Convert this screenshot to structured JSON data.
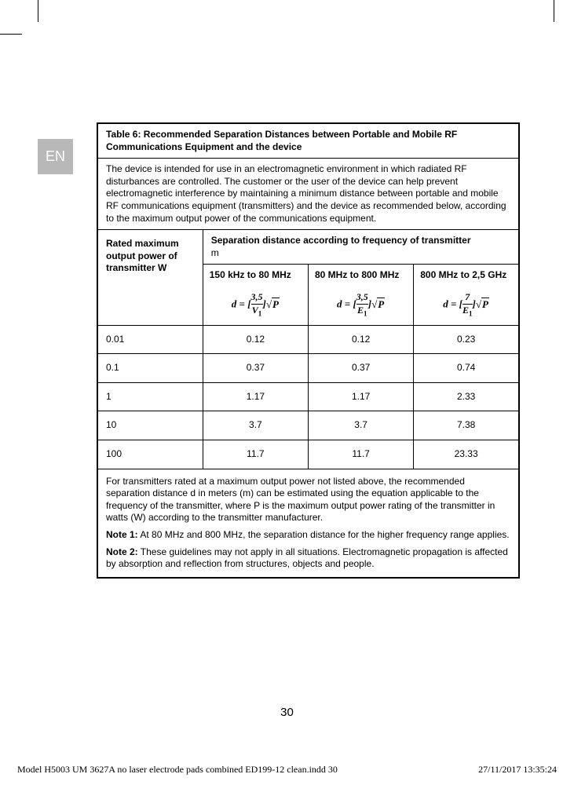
{
  "lang_tab": "EN",
  "title": "Table 6: Recommended Separation Distances between Portable and Mobile RF Communications Equipment and the device",
  "intro": "The device is intended for use in an electromagnetic environment in which radiated RF disturbances are controlled. The customer or the user of the device can help prevent electromagnetic interference by maintaining a minimum distance between portable and mobile RF communications equipment (transmitters) and the device as recommended below, according to the maximum output power of the communications equipment.",
  "row_header": "Rated maximum output power of transmitter W",
  "sep_header_bold": "Separation distance according to frequency of transmitter",
  "sep_header_unit": "m",
  "freq_cols": [
    {
      "label": "150 kHz to 80 MHz",
      "numerator": "3,5",
      "denominator": "V",
      "den_sub": "1"
    },
    {
      "label": "80 MHz to 800 MHz",
      "numerator": "3,5",
      "denominator": "E",
      "den_sub": "1"
    },
    {
      "label": "800 MHz to 2,5 GHz",
      "numerator": "7",
      "denominator": "E",
      "den_sub": "1"
    }
  ],
  "data_rows": [
    {
      "w": "0.01",
      "v": [
        "0.12",
        "0.12",
        "0.23"
      ]
    },
    {
      "w": "0.1",
      "v": [
        "0.37",
        "0.37",
        "0.74"
      ]
    },
    {
      "w": "1",
      "v": [
        "1.17",
        "1.17",
        "2.33"
      ]
    },
    {
      "w": "10",
      "v": [
        "3.7",
        "3.7",
        "7.38"
      ]
    },
    {
      "w": "100",
      "v": [
        "11.7",
        "11.7",
        "23.33"
      ]
    }
  ],
  "notes_para": "For transmitters rated at a maximum output power not listed above, the recommended separation distance d in meters (m) can be estimated using the equation applicable to the frequency of the transmitter, where P is the maximum output power rating of the transmitter in watts (W) according to the transmitter manufacturer.",
  "note1_label": "Note 1:",
  "note1_text": " At 80 MHz and 800 MHz, the separation distance for the higher frequency range applies.",
  "note2_label": "Note 2:",
  "note2_text": " These guidelines may not apply in all situations. Electromagnetic propagation is affected by absorption and reflection from structures, objects and people.",
  "page_number": "30",
  "footer_left": "Model H5003 UM 3627A no laser electrode pads combined ED199-12 clean.indd   30",
  "footer_right": "27/11/2017   13:35:24"
}
